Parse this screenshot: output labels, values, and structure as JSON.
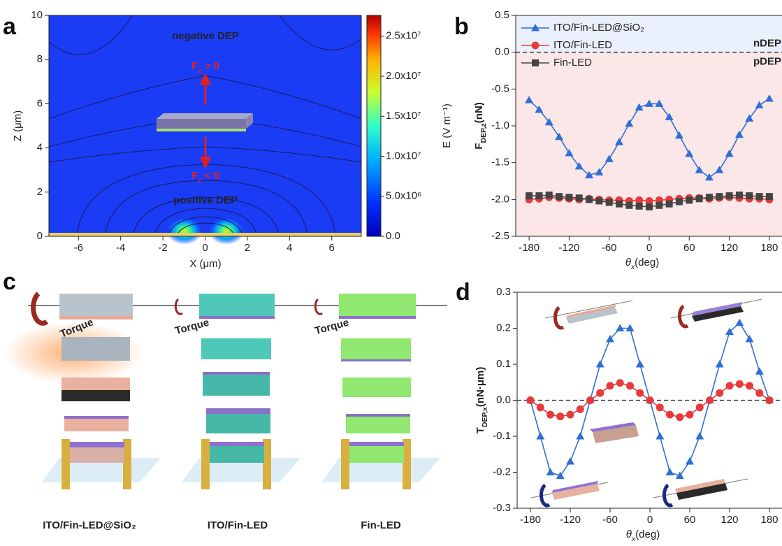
{
  "chart_data": [
    {
      "type": "field",
      "panel": "a",
      "xlabel": "X (μm)",
      "ylabel": "Z (μm)",
      "clabel": "E (V m⁻¹)",
      "xlim": [
        -7.4,
        7.4
      ],
      "xticks": [
        -6,
        -4,
        -2,
        0,
        2,
        4,
        6
      ],
      "ylim": [
        0,
        10
      ],
      "yticks": [
        0,
        2,
        4,
        6,
        8,
        10
      ],
      "clim": [
        0,
        27600000
      ],
      "cticks": [
        {
          "value": 0,
          "label": "0.0"
        },
        {
          "value": 5000000,
          "label": "5.0x10⁶"
        },
        {
          "value": 10000000,
          "label": "1.0x10⁷"
        },
        {
          "value": 15000000,
          "label": "1.5x10⁷"
        },
        {
          "value": 20000000,
          "label": "2.0x10⁷"
        },
        {
          "value": 25000000,
          "label": "2.5x10⁷"
        }
      ],
      "annotations": [
        "negative DEP",
        "positive DEP"
      ],
      "forces": [
        {
          "main": "F",
          "sub": "z",
          "rest": " > 0"
        },
        {
          "main": "F",
          "sub": "z",
          "rest": " < 0"
        }
      ]
    },
    {
      "type": "line",
      "panel": "b",
      "xlabel": {
        "main": "θ",
        "sub": "x",
        "rest": "(deg)"
      },
      "ylabel": {
        "main": "F",
        "sub": "DEP,z",
        "rest": "(nN)"
      },
      "xlim": [
        -200,
        200
      ],
      "xticks": [
        -180,
        -120,
        -60,
        0,
        60,
        120,
        180
      ],
      "ylim": [
        -2.5,
        0.5
      ],
      "yticks": [
        0.5,
        {
          "value": 0,
          "label": "0.0"
        },
        -0.5,
        {
          "value": -1,
          "label": "-1.0"
        },
        -1.5,
        {
          "value": -2,
          "label": "-2.0"
        },
        -2.5
      ],
      "hline": 0,
      "shade_above": "#e9f0fb",
      "shade_below": "#fbe7e7",
      "annotations": [
        "nDEP",
        "pDEP"
      ],
      "legend": "upper left",
      "x": [
        -180,
        -165,
        -150,
        -135,
        -120,
        -105,
        -90,
        -75,
        -60,
        -45,
        -30,
        -15,
        0,
        15,
        30,
        45,
        60,
        75,
        90,
        105,
        120,
        135,
        150,
        165,
        180
      ],
      "series": [
        {
          "name": "ITO/Fin-LED@SiO₂",
          "color": "#2f6fd6",
          "marker": "triangle",
          "values": [
            -0.65,
            -0.78,
            -0.95,
            -1.15,
            -1.37,
            -1.55,
            -1.67,
            -1.63,
            -1.45,
            -1.22,
            -0.97,
            -0.75,
            -0.7,
            -0.7,
            -0.88,
            -1.13,
            -1.38,
            -1.6,
            -1.7,
            -1.6,
            -1.38,
            -1.12,
            -0.9,
            -0.72,
            -0.63
          ]
        },
        {
          "name": "ITO/Fin-LED",
          "color": "#e83a3a",
          "marker": "circle",
          "values": [
            -2.0,
            -1.99,
            -1.97,
            -1.98,
            -1.99,
            -2.0,
            -1.99,
            -2.0,
            -2.01,
            -2.01,
            -2.02,
            -2.01,
            -2.02,
            -2.01,
            -2.0,
            -1.99,
            -1.98,
            -1.98,
            -1.99,
            -1.98,
            -1.97,
            -1.98,
            -1.99,
            -1.99,
            -2.0
          ]
        },
        {
          "name": "Fin-LED",
          "color": "#444444",
          "marker": "square",
          "values": [
            -1.95,
            -1.95,
            -1.94,
            -1.96,
            -1.97,
            -1.98,
            -2.0,
            -2.02,
            -2.04,
            -2.06,
            -2.08,
            -2.09,
            -2.1,
            -2.08,
            -2.06,
            -2.03,
            -2.01,
            -1.99,
            -1.97,
            -1.96,
            -1.95,
            -1.94,
            -1.95,
            -1.96,
            -1.96
          ]
        }
      ]
    },
    {
      "type": "line",
      "panel": "d",
      "xlabel": {
        "main": "θ",
        "sub": "x",
        "rest": "(deg)"
      },
      "ylabel": {
        "main": "T",
        "sub": "DEP,x",
        "rest": "(nN·μm)"
      },
      "xlim": [
        -200,
        200
      ],
      "xticks": [
        -180,
        -120,
        -60,
        0,
        60,
        120,
        180
      ],
      "ylim": [
        -0.3,
        0.3
      ],
      "yticks": [
        0.3,
        0.2,
        0.1,
        {
          "value": 0,
          "label": "0.0"
        },
        -0.1,
        -0.2,
        -0.3
      ],
      "hline": 0,
      "x": [
        -180,
        -165,
        -150,
        -135,
        -120,
        -105,
        -90,
        -75,
        -60,
        -45,
        -30,
        -15,
        0,
        15,
        30,
        45,
        60,
        75,
        90,
        105,
        120,
        135,
        150,
        165,
        180
      ],
      "series": [
        {
          "color": "#2f6fd6",
          "marker": "triangle",
          "values": [
            0.0,
            -0.1,
            -0.2,
            -0.21,
            -0.17,
            -0.1,
            0.0,
            0.1,
            0.17,
            0.2,
            0.2,
            0.1,
            0.0,
            -0.1,
            -0.2,
            -0.21,
            -0.17,
            -0.1,
            0.0,
            0.1,
            0.19,
            0.215,
            0.17,
            0.08,
            0.0
          ]
        },
        {
          "color": "#e83a3a",
          "marker": "circle",
          "values": [
            0.0,
            -0.02,
            -0.04,
            -0.045,
            -0.04,
            -0.025,
            0.0,
            0.02,
            0.04,
            0.048,
            0.04,
            0.02,
            0.0,
            -0.02,
            -0.04,
            -0.047,
            -0.04,
            -0.02,
            0.0,
            0.02,
            0.04,
            0.045,
            0.04,
            0.02,
            0.0
          ]
        }
      ]
    }
  ],
  "figure_c": {
    "panel": "c",
    "torque": [
      "Torque",
      "Torque",
      "Torque"
    ],
    "labels": [
      "ITO/Fin-LED@SiO₂",
      "ITO/Fin-LED",
      "Fin-LED"
    ]
  }
}
